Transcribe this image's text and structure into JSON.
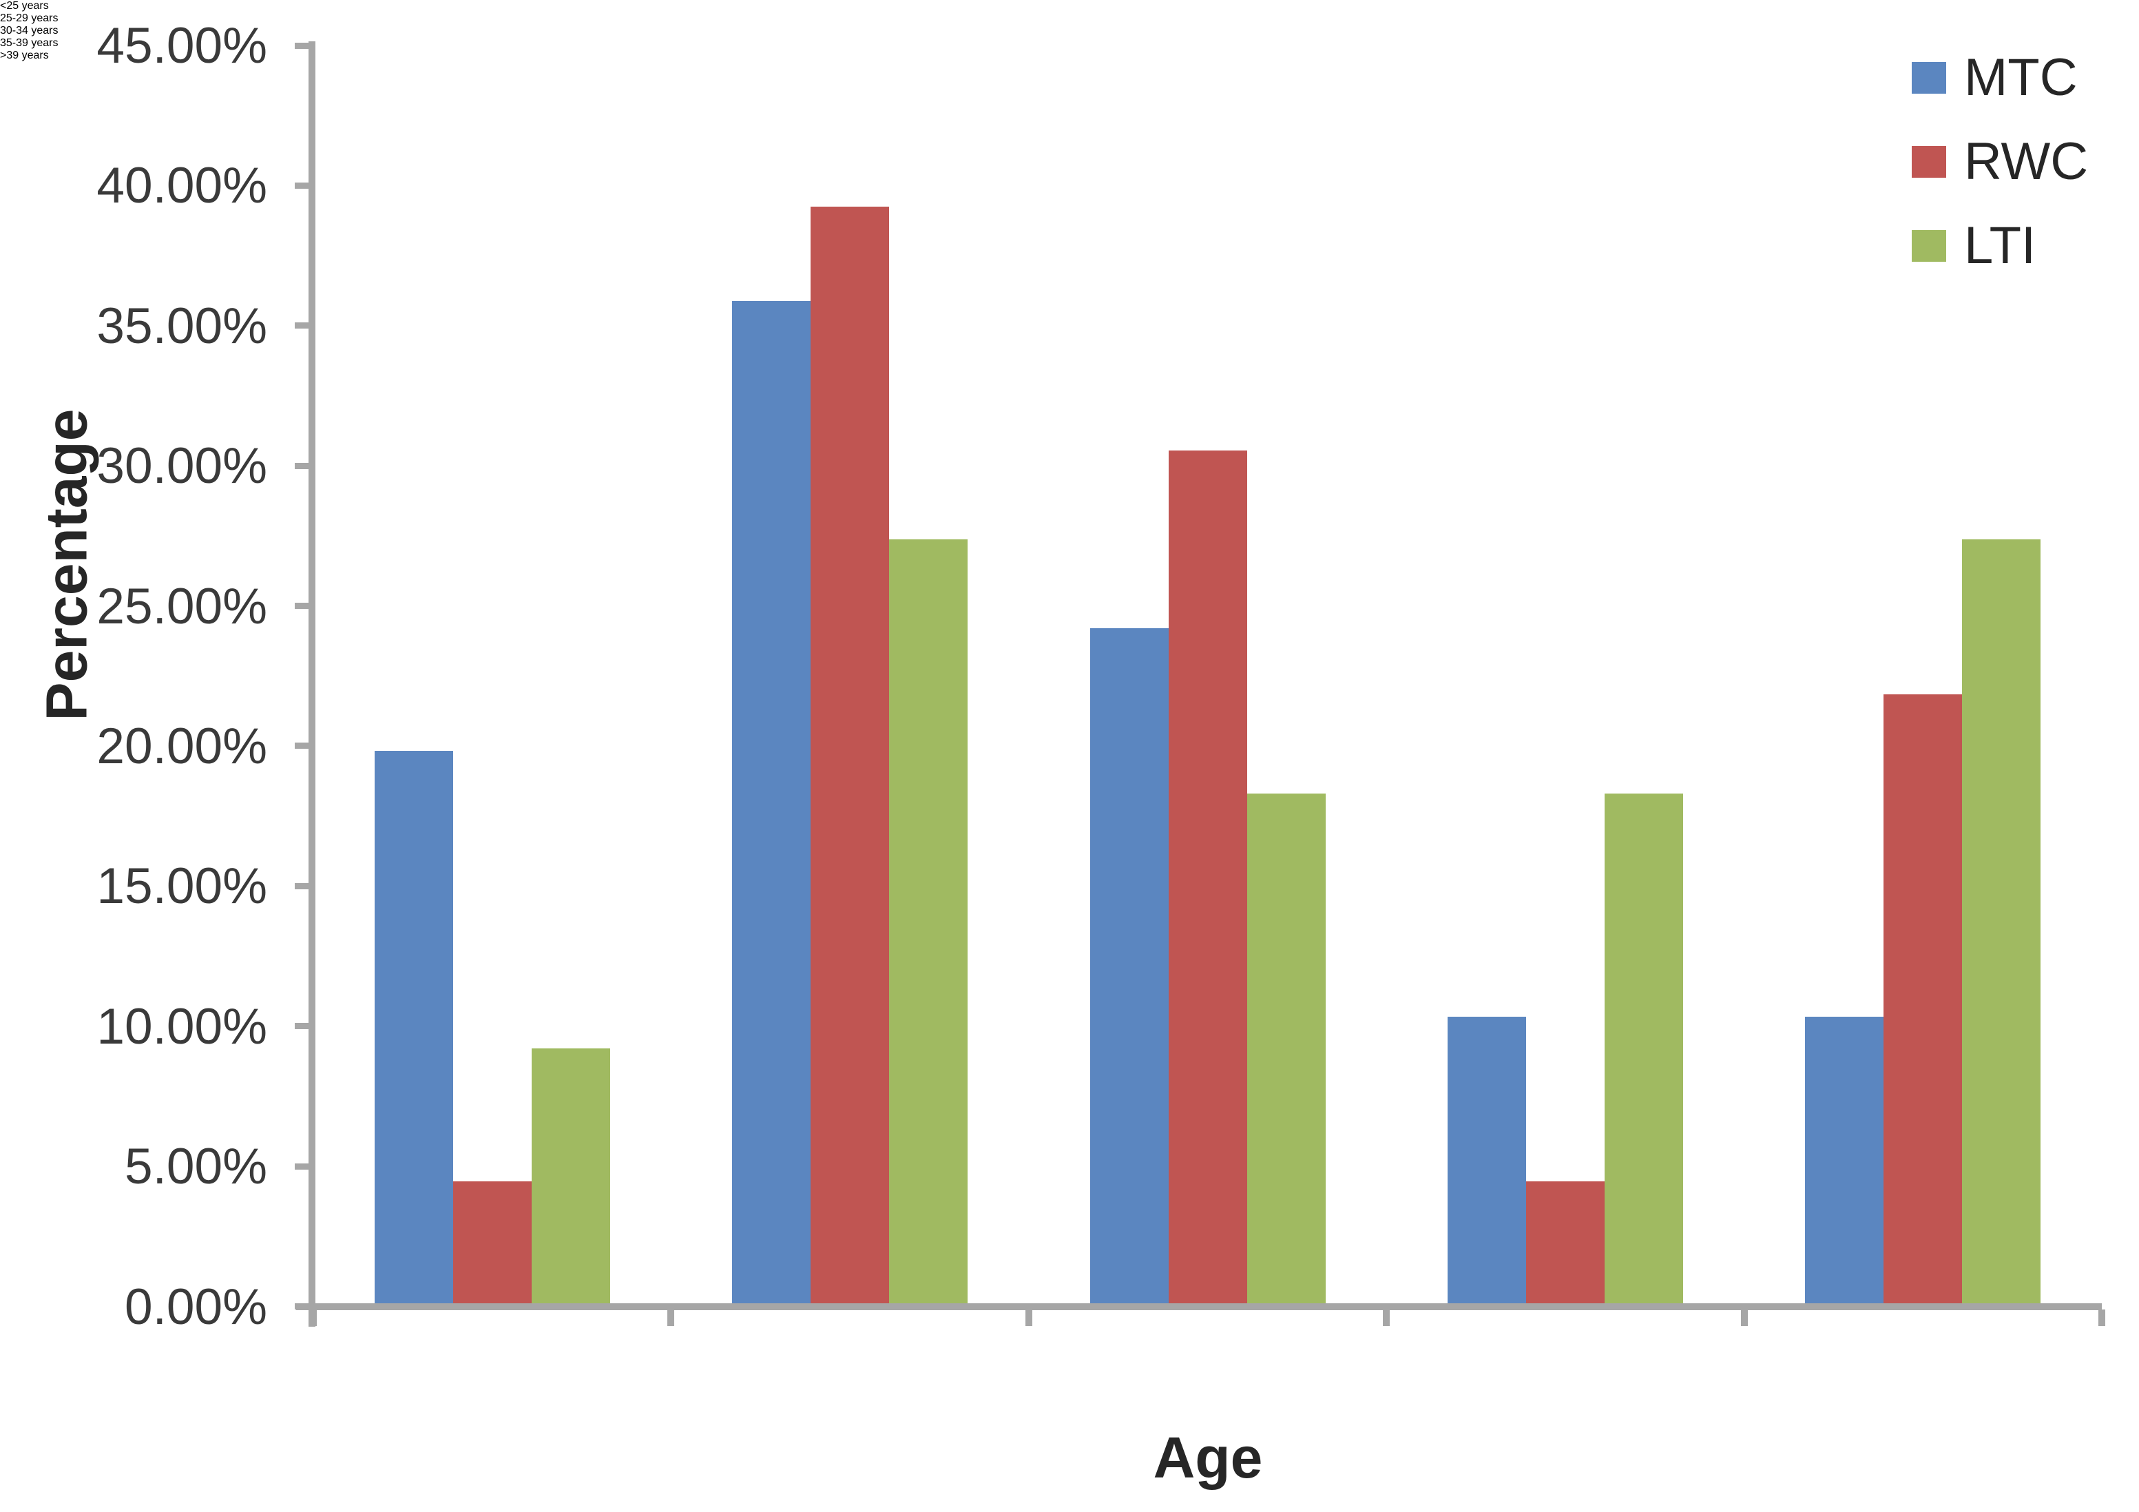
{
  "chart_data": {
    "type": "bar",
    "title": "",
    "categories": [
      "<25 years",
      "25-29 years",
      "30-34 years",
      "35-39 years",
      ">39 years"
    ],
    "series": [
      {
        "name": "MTC",
        "color": "#5B86C0",
        "values": [
          19.71,
          35.77,
          24.09,
          10.22,
          10.22
        ]
      },
      {
        "name": "RWC",
        "color": "#C05552",
        "values": [
          4.35,
          39.13,
          30.43,
          4.35,
          21.74
        ]
      },
      {
        "name": "LTI",
        "color": "#A0BA61",
        "values": [
          9.09,
          27.27,
          18.18,
          18.18,
          27.27
        ]
      }
    ],
    "xlabel": "Age",
    "ylabel": "Percentage",
    "ylim": [
      0,
      45
    ],
    "y_tick_step": 5,
    "y_tick_labels": [
      "45.00%",
      "40.00%",
      "35.00%",
      "30.00%",
      "25.00%",
      "20.00%",
      "15.00%",
      "10.00%",
      "5.00%",
      "0.00%"
    ],
    "legend_position": "top-right",
    "grid": false,
    "axis_color": "#A6A6A6",
    "text_color": "#3A3A3A"
  }
}
